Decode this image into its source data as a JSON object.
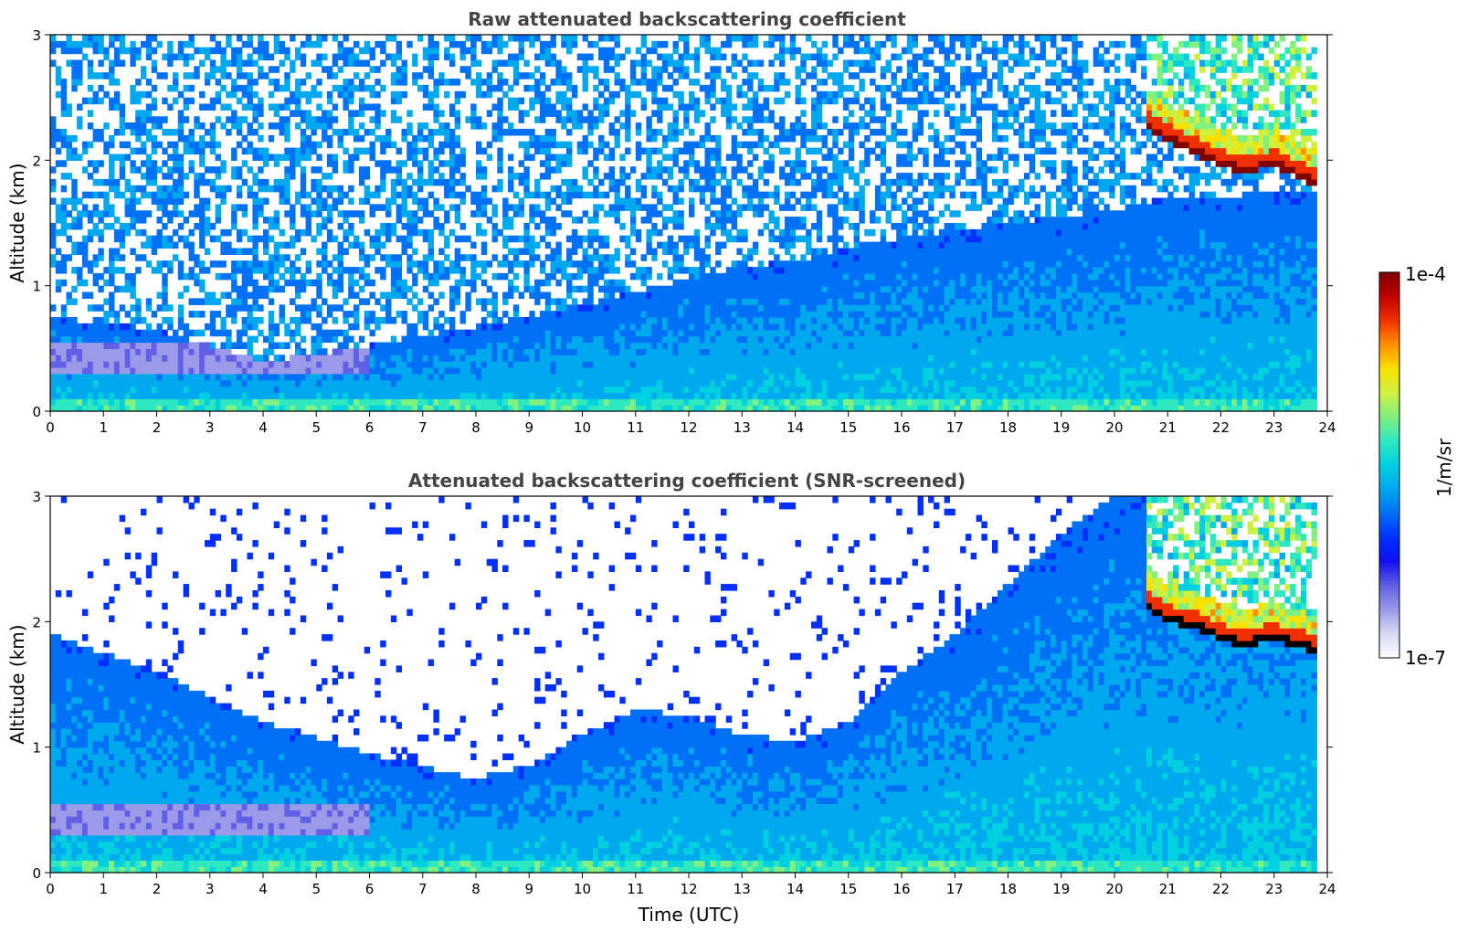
{
  "chart_data": [
    {
      "type": "heatmap",
      "title": "Raw attenuated backscattering coefficient",
      "xlabel": "",
      "ylabel": "Altitude (km)",
      "xlim": [
        0,
        24
      ],
      "ylim": [
        0,
        3
      ],
      "xticks": [
        "0",
        "1",
        "2",
        "3",
        "4",
        "5",
        "6",
        "7",
        "8",
        "9",
        "10",
        "11",
        "12",
        "13",
        "14",
        "15",
        "16",
        "17",
        "18",
        "19",
        "20",
        "21",
        "22",
        "23",
        "24"
      ],
      "yticks": [
        "0",
        "1",
        "2",
        "3"
      ],
      "data_extent_x": [
        0,
        23.8
      ],
      "screened": false,
      "features": {
        "boundary_layer_top_km": [
          [
            0,
            0.75
          ],
          [
            2,
            0.65
          ],
          [
            4,
            0.4
          ],
          [
            5,
            0.45
          ],
          [
            7,
            0.6
          ],
          [
            9,
            0.75
          ],
          [
            11,
            0.95
          ],
          [
            12,
            1.05
          ],
          [
            13,
            1.15
          ],
          [
            14,
            1.2
          ],
          [
            15,
            1.3
          ],
          [
            17,
            1.45
          ],
          [
            19,
            1.55
          ],
          [
            20,
            1.6
          ],
          [
            21,
            1.7
          ],
          [
            23.8,
            1.75
          ]
        ],
        "cloud_base_km": [
          [
            20.6,
            2.25
          ],
          [
            21,
            2.15
          ],
          [
            21.5,
            2.05
          ],
          [
            22,
            1.95
          ],
          [
            22.5,
            1.9
          ],
          [
            23,
            1.95
          ],
          [
            23.5,
            1.85
          ],
          [
            23.8,
            1.8
          ]
        ]
      }
    },
    {
      "type": "heatmap",
      "title": "Attenuated backscattering coefficient (SNR-screened)",
      "xlabel": "Time (UTC)",
      "ylabel": "Altitude (km)",
      "xlim": [
        0,
        24
      ],
      "ylim": [
        0,
        3
      ],
      "xticks": [
        "0",
        "1",
        "2",
        "3",
        "4",
        "5",
        "6",
        "7",
        "8",
        "9",
        "10",
        "11",
        "12",
        "13",
        "14",
        "15",
        "16",
        "17",
        "18",
        "19",
        "20",
        "21",
        "22",
        "23",
        "24"
      ],
      "yticks": [
        "0",
        "1",
        "2",
        "3"
      ],
      "data_extent_x": [
        0,
        23.8
      ],
      "screened": true,
      "features": {
        "valid_region_top_km": [
          [
            0,
            1.9
          ],
          [
            2,
            1.6
          ],
          [
            4,
            1.2
          ],
          [
            6,
            0.95
          ],
          [
            8,
            0.75
          ],
          [
            9,
            0.85
          ],
          [
            10,
            1.1
          ],
          [
            11,
            1.3
          ],
          [
            12,
            1.25
          ],
          [
            13,
            1.1
          ],
          [
            14,
            1.05
          ],
          [
            15,
            1.2
          ],
          [
            16,
            1.6
          ],
          [
            17,
            1.9
          ],
          [
            18,
            2.3
          ],
          [
            19,
            2.7
          ],
          [
            20,
            3.0
          ],
          [
            23.8,
            3.0
          ]
        ],
        "cloud_base_km": [
          [
            20.6,
            2.1
          ],
          [
            21,
            2.0
          ],
          [
            21.5,
            1.95
          ],
          [
            22,
            1.85
          ],
          [
            22.5,
            1.8
          ],
          [
            23,
            1.85
          ],
          [
            23.5,
            1.8
          ],
          [
            23.8,
            1.75
          ]
        ]
      }
    }
  ],
  "colorbar": {
    "min_label": "1e-7",
    "max_label": "1e-4",
    "unit_label": "1/m/sr",
    "scale": "log",
    "colormap": [
      "#ffffff",
      "#d8d8f2",
      "#9a9ae8",
      "#6060e6",
      "#1010f0",
      "#0030ff",
      "#0070f5",
      "#00a8ee",
      "#00d0e0",
      "#30e8c0",
      "#80f080",
      "#d0f040",
      "#f8e000",
      "#ff9000",
      "#f03000",
      "#c00000",
      "#800000"
    ]
  },
  "colors": {
    "title": "#444444",
    "clear_air": "#ffffff",
    "cloud_core": "#000000"
  }
}
